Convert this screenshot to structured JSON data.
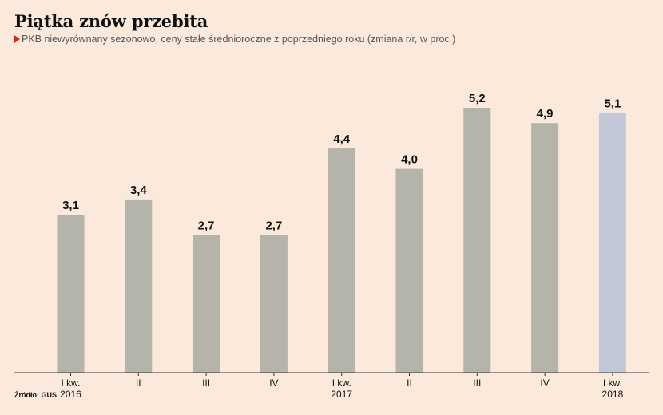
{
  "title": "Piątka znów przebita",
  "subtitle": "PKB niewyrównany sezonowo, ceny stałe średnioroczne z poprzedniego roku (zmiana r/r, w proc.)",
  "source": "Źródło: GUS",
  "colors": {
    "background": "#fbeadb",
    "bar": "#b5b4aa",
    "highlight_bar": "#c3c8d8",
    "marker": "#e2231a"
  },
  "chart_data": {
    "type": "bar",
    "categories": [
      [
        "I kw.",
        "2016"
      ],
      [
        "II"
      ],
      [
        "III"
      ],
      [
        "IV"
      ],
      [
        "I kw.",
        "2017"
      ],
      [
        "II"
      ],
      [
        "III"
      ],
      [
        "IV"
      ],
      [
        "I kw.",
        "2018"
      ]
    ],
    "values": [
      3.1,
      3.4,
      2.7,
      2.7,
      4.4,
      4.0,
      5.2,
      4.9,
      5.1
    ],
    "value_labels": [
      "3,1",
      "3,4",
      "2,7",
      "2,7",
      "4,4",
      "4,0",
      "5,2",
      "4,9",
      "5,1"
    ],
    "highlight_index": 8,
    "ylim": [
      0,
      5.2
    ],
    "grid": false,
    "xlabel": "",
    "ylabel": ""
  }
}
